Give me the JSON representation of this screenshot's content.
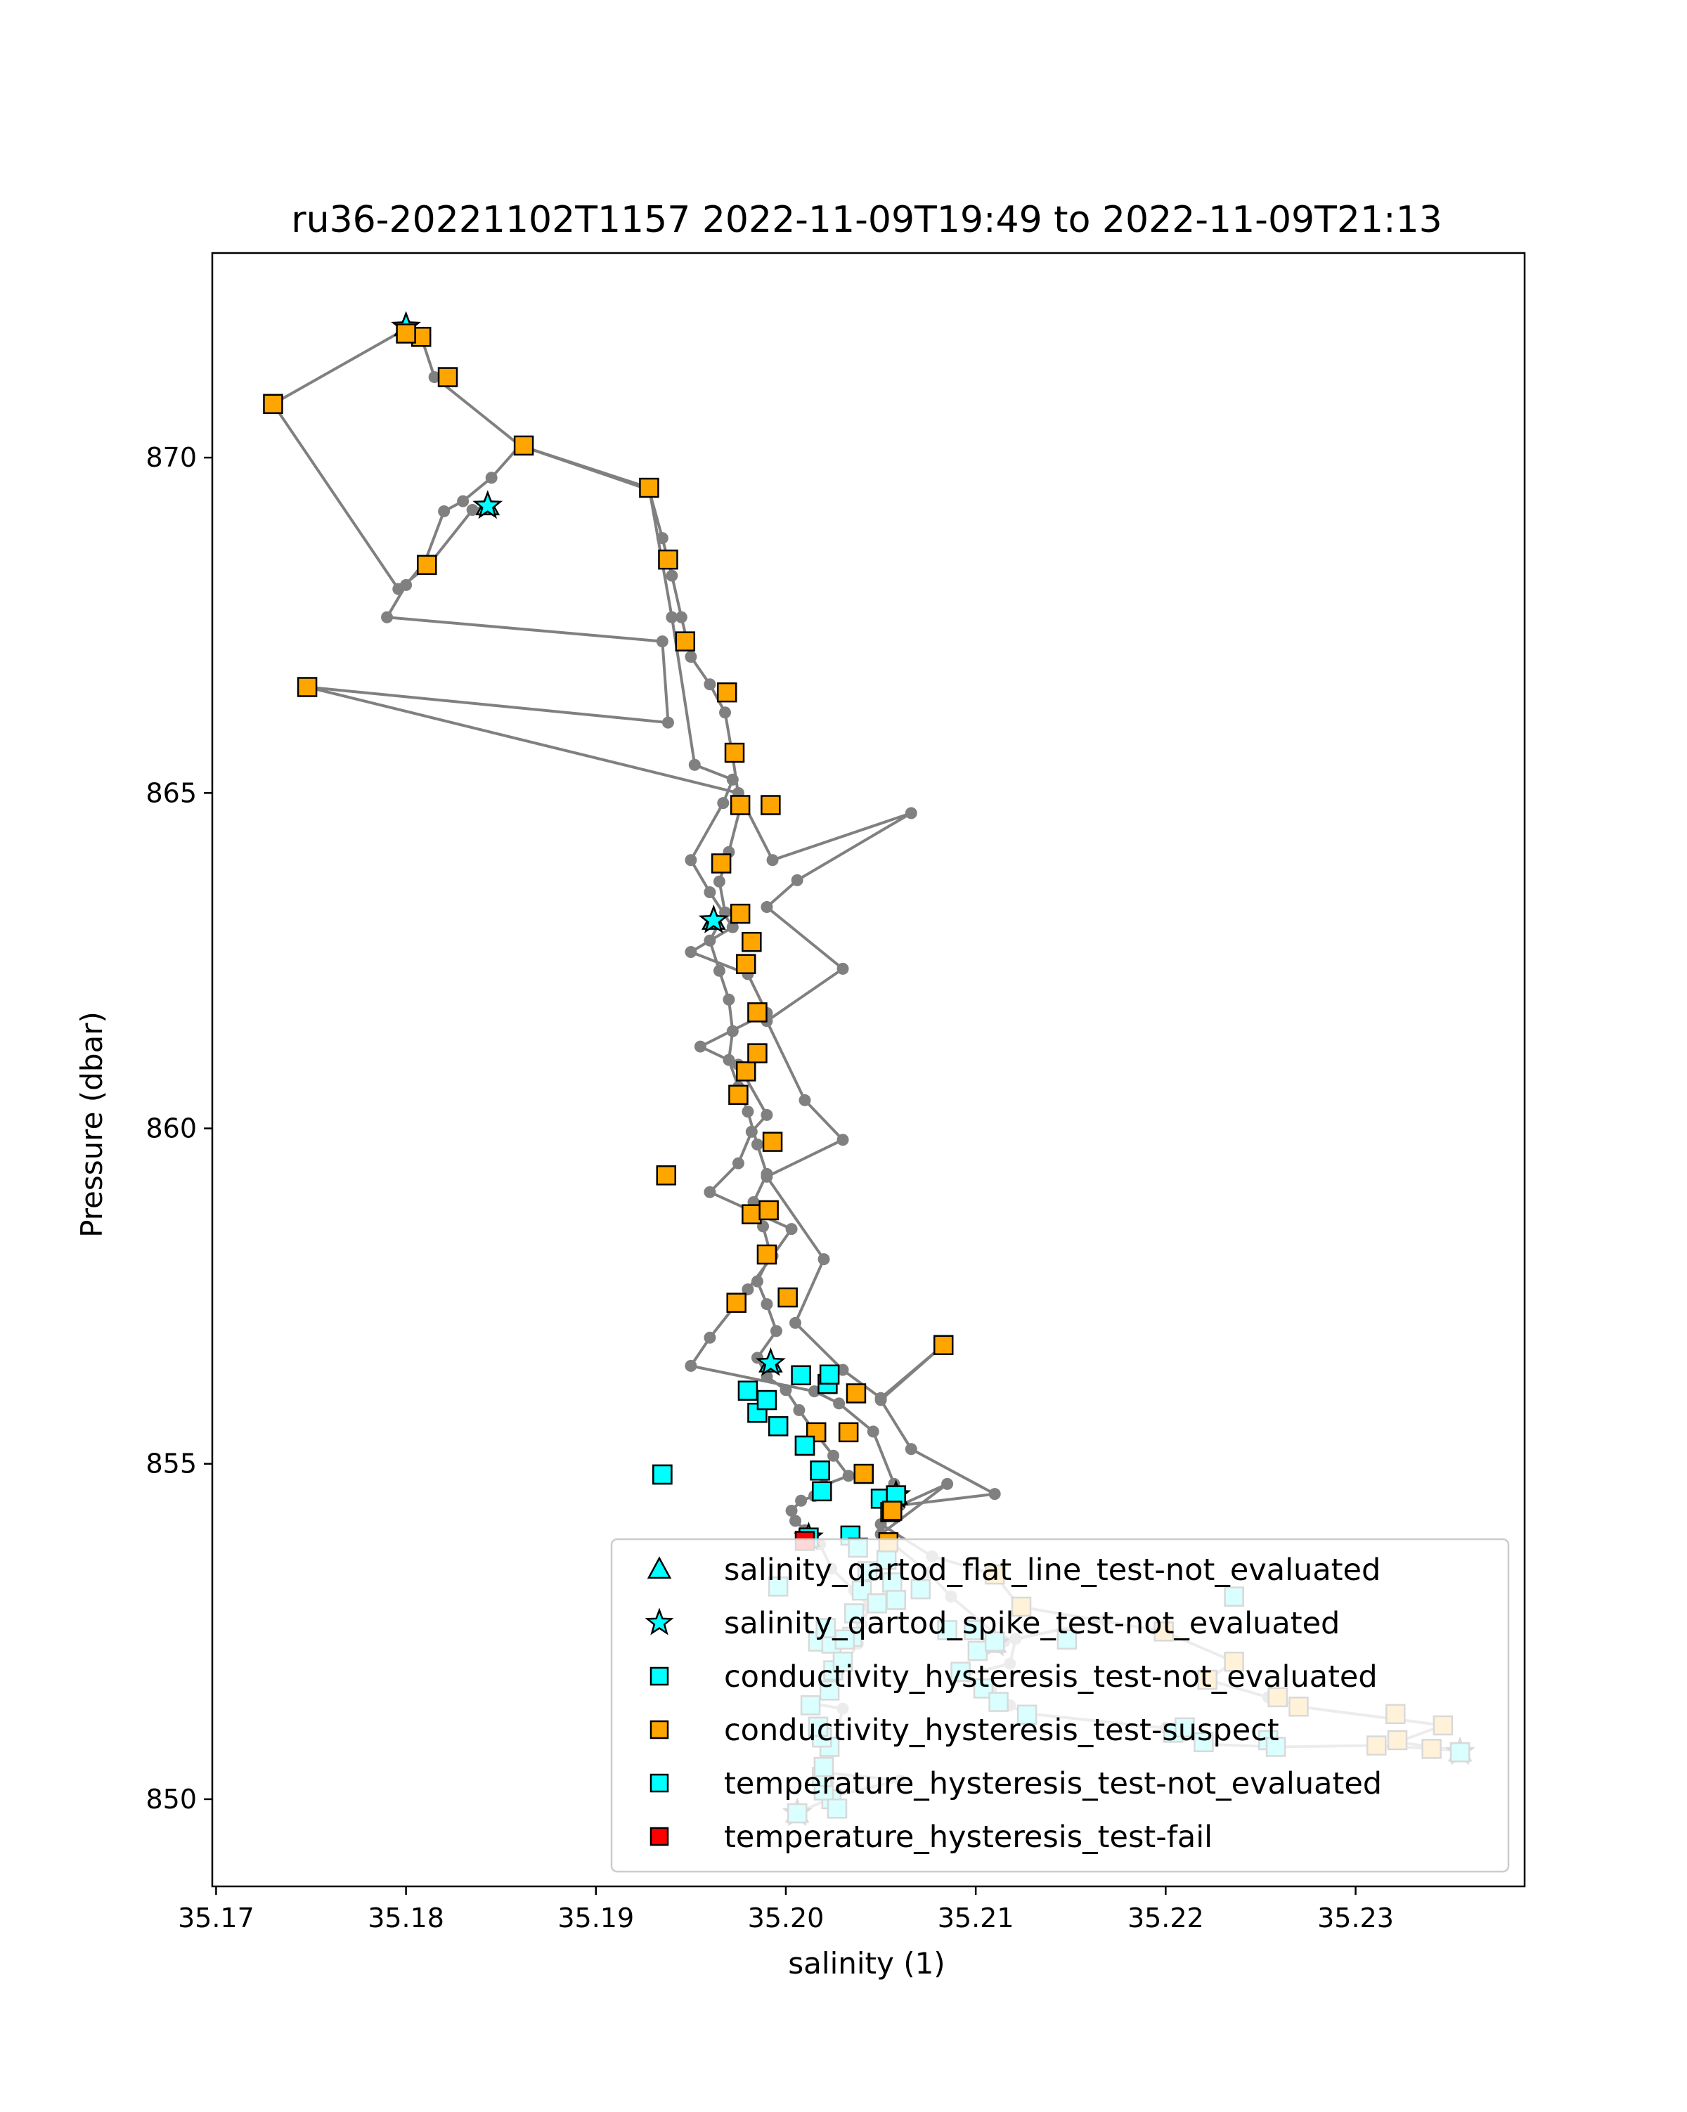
{
  "chart_data": {
    "type": "scatter",
    "title": "ru36-20221102T1157 2022-11-09T19:49 to 2022-11-09T21:13",
    "xlabel": "salinity (1)",
    "ylabel": "Pressure (dbar)",
    "xlim": [
      35.1698,
      35.2389
    ],
    "ylim": [
      873.05,
      848.7
    ],
    "y_inverted": true,
    "grid": false,
    "legend_position": "bottom-right",
    "x_ticks": [
      "35.17",
      "35.18",
      "35.19",
      "35.20",
      "35.21",
      "35.22",
      "35.23"
    ],
    "x_tick_values": [
      35.17,
      35.18,
      35.19,
      35.2,
      35.21,
      35.22,
      35.23
    ],
    "y_ticks": [
      "850",
      "855",
      "860",
      "865",
      "870"
    ],
    "y_tick_values": [
      850,
      855,
      860,
      865,
      870
    ],
    "colors": {
      "line": "#808080",
      "not_evaluated": "#00ffff",
      "suspect": "#ffa500",
      "fail": "#ff0000",
      "edge": "#000000"
    },
    "profile": [
      [
        35.2006,
        849.79
      ],
      [
        35.2026,
        850.05
      ],
      [
        35.206,
        850.28
      ],
      [
        35.2022,
        850.39
      ],
      [
        35.2025,
        850.78
      ],
      [
        35.203,
        851.35
      ],
      [
        35.2015,
        851.42
      ],
      [
        35.2024,
        851.68
      ],
      [
        35.2032,
        852.05
      ],
      [
        35.2038,
        852.32
      ],
      [
        35.204,
        852.6
      ],
      [
        35.2044,
        852.87
      ],
      [
        35.2036,
        853.11
      ],
      [
        35.2024,
        853.44
      ],
      [
        35.2018,
        853.8
      ],
      [
        35.201,
        854.01
      ],
      [
        35.2005,
        854.15
      ],
      [
        35.2003,
        854.3
      ],
      [
        35.2008,
        854.45
      ],
      [
        35.2015,
        854.52
      ],
      [
        35.202,
        854.68
      ],
      [
        35.2033,
        854.82
      ],
      [
        35.2025,
        855.12
      ],
      [
        35.2015,
        855.48
      ],
      [
        35.2007,
        855.8
      ],
      [
        35.2,
        856.1
      ],
      [
        35.199,
        856.3
      ],
      [
        35.1985,
        856.58
      ],
      [
        35.1995,
        856.98
      ],
      [
        35.199,
        857.38
      ],
      [
        35.1985,
        857.72
      ],
      [
        35.1992,
        858.12
      ],
      [
        35.1988,
        858.54
      ],
      [
        35.1983,
        858.9
      ],
      [
        35.199,
        859.32
      ],
      [
        35.1985,
        859.76
      ],
      [
        35.198,
        860.25
      ],
      [
        35.1975,
        860.62
      ],
      [
        35.197,
        861.02
      ],
      [
        35.1972,
        861.45
      ],
      [
        35.197,
        861.92
      ],
      [
        35.1965,
        862.35
      ],
      [
        35.196,
        862.8
      ],
      [
        35.1968,
        863.22
      ],
      [
        35.1965,
        863.68
      ],
      [
        35.197,
        864.12
      ],
      [
        35.1976,
        864.78
      ],
      [
        35.1972,
        865.55
      ],
      [
        35.1968,
        866.2
      ],
      [
        35.196,
        866.62
      ],
      [
        35.195,
        867.03
      ],
      [
        35.1945,
        867.62
      ],
      [
        35.194,
        868.24
      ],
      [
        35.1935,
        868.8
      ],
      [
        35.1928,
        869.52
      ],
      [
        35.186,
        870.18
      ],
      [
        35.1845,
        869.7
      ],
      [
        35.183,
        869.35
      ],
      [
        35.182,
        869.2
      ],
      [
        35.181,
        868.45
      ],
      [
        35.18,
        868.1
      ],
      [
        35.179,
        867.62
      ],
      [
        35.1935,
        867.26
      ],
      [
        35.1938,
        866.05
      ],
      [
        35.1748,
        866.58
      ],
      [
        35.1975,
        865.0
      ],
      [
        35.1993,
        864.0
      ],
      [
        35.2066,
        864.7
      ],
      [
        35.2006,
        863.7
      ],
      [
        35.199,
        863.3
      ],
      [
        35.203,
        862.38
      ],
      [
        35.199,
        861.6
      ],
      [
        35.201,
        860.42
      ],
      [
        35.203,
        859.83
      ],
      [
        35.199,
        859.28
      ],
      [
        35.202,
        858.05
      ],
      [
        35.2005,
        857.1
      ],
      [
        35.203,
        856.4
      ],
      [
        35.205,
        855.98
      ],
      [
        35.2083,
        856.77
      ],
      [
        35.205,
        855.95
      ],
      [
        35.2066,
        855.22
      ],
      [
        35.211,
        854.55
      ],
      [
        35.206,
        854.38
      ],
      [
        35.2085,
        854.7
      ],
      [
        35.205,
        853.95
      ],
      [
        35.2075,
        853.38
      ],
      [
        35.2087,
        853.02
      ],
      [
        35.2115,
        852.35
      ],
      [
        35.2168,
        852.67
      ],
      [
        35.2121,
        852.39
      ],
      [
        35.2118,
        852.02
      ],
      [
        35.209,
        851.82
      ],
      [
        35.2108,
        851.64
      ],
      [
        35.2118,
        851.4
      ],
      [
        35.2126,
        851.28
      ],
      [
        35.22,
        851.06
      ],
      [
        35.222,
        850.82
      ],
      [
        35.2258,
        850.78
      ],
      [
        35.2311,
        850.8
      ],
      [
        35.2354,
        850.73
      ],
      [
        35.2322,
        850.85
      ],
      [
        35.2346,
        851.1
      ],
      [
        35.227,
        851.38
      ],
      [
        35.2254,
        851.52
      ],
      [
        35.2222,
        851.78
      ],
      [
        35.2236,
        852.05
      ],
      [
        35.2199,
        852.5
      ],
      [
        35.2123,
        852.87
      ],
      [
        35.211,
        853.35
      ],
      [
        35.2077,
        853.62
      ],
      [
        35.205,
        854.1
      ],
      [
        35.2057,
        854.7
      ],
      [
        35.2046,
        855.48
      ],
      [
        35.2028,
        855.9
      ],
      [
        35.2015,
        856.08
      ],
      [
        35.195,
        856.46
      ],
      [
        35.196,
        856.88
      ],
      [
        35.198,
        857.6
      ],
      [
        35.1993,
        858.1
      ],
      [
        35.2003,
        858.5
      ],
      [
        35.196,
        859.05
      ],
      [
        35.1975,
        859.48
      ],
      [
        35.1982,
        859.95
      ],
      [
        35.199,
        860.2
      ],
      [
        35.1975,
        860.95
      ],
      [
        35.1955,
        861.22
      ],
      [
        35.199,
        861.72
      ],
      [
        35.198,
        862.3
      ],
      [
        35.195,
        862.63
      ],
      [
        35.1972,
        863.0
      ],
      [
        35.196,
        863.52
      ],
      [
        35.195,
        864.0
      ],
      [
        35.1967,
        864.85
      ],
      [
        35.1972,
        865.2
      ],
      [
        35.1952,
        865.42
      ],
      [
        35.194,
        867.62
      ],
      [
        35.1928,
        869.55
      ],
      [
        35.186,
        870.18
      ],
      [
        35.1815,
        871.2
      ],
      [
        35.1808,
        871.8
      ],
      [
        35.18,
        871.95
      ],
      [
        35.18,
        871.92
      ],
      [
        35.173,
        870.8
      ],
      [
        35.1796,
        868.04
      ],
      [
        35.1812,
        868.4
      ],
      [
        35.1835,
        869.22
      ],
      [
        35.1843,
        869.28
      ]
    ],
    "markers": {
      "salinity_qartod_flat_line_test-not_evaluated": [
        [
          35.2006,
          849.79
        ],
        [
          35.2355,
          850.7
        ],
        [
          35.211,
          852.32
        ],
        [
          35.1992,
          856.5
        ],
        [
          35.2058,
          854.53
        ],
        [
          35.2012,
          853.9
        ],
        [
          35.1962,
          863.1
        ],
        [
          35.1843,
          869.28
        ],
        [
          35.18,
          871.95
        ]
      ],
      "salinity_qartod_spike_test-not_evaluated": [
        [
          35.2006,
          849.79
        ],
        [
          35.2355,
          850.7
        ],
        [
          35.211,
          852.32
        ],
        [
          35.1992,
          856.5
        ],
        [
          35.2058,
          854.53
        ],
        [
          35.2012,
          853.9
        ],
        [
          35.1962,
          863.1
        ],
        [
          35.1843,
          869.28
        ],
        [
          35.18,
          871.95
        ]
      ],
      "conductivity_hysteresis_test-not_evaluated": [
        [
          35.2006,
          849.79
        ],
        [
          35.2027,
          849.86
        ],
        [
          35.2024,
          850.0
        ],
        [
          35.202,
          850.13
        ],
        [
          35.2019,
          850.33
        ],
        [
          35.202,
          850.48
        ],
        [
          35.2023,
          850.78
        ],
        [
          35.2019,
          850.92
        ],
        [
          35.2017,
          851.08
        ],
        [
          35.2013,
          851.4
        ],
        [
          35.2023,
          851.62
        ],
        [
          35.2025,
          851.92
        ],
        [
          35.203,
          852.05
        ],
        [
          35.2017,
          852.35
        ],
        [
          35.2024,
          852.32
        ],
        [
          35.2035,
          852.42
        ],
        [
          35.2021,
          852.55
        ],
        [
          35.2031,
          852.38
        ],
        [
          35.2036,
          852.77
        ],
        [
          35.204,
          853.11
        ],
        [
          35.2043,
          853.4
        ],
        [
          35.2048,
          852.92
        ],
        [
          35.2056,
          853.23
        ],
        [
          35.2058,
          852.97
        ],
        [
          35.2071,
          853.13
        ],
        [
          35.2053,
          853.57
        ],
        [
          35.2034,
          853.93
        ],
        [
          35.2038,
          853.75
        ],
        [
          35.1996,
          853.17
        ],
        [
          35.2019,
          854.59
        ],
        [
          35.2018,
          854.9
        ],
        [
          35.205,
          854.48
        ],
        [
          35.2055,
          854.28
        ],
        [
          35.1935,
          854.84
        ],
        [
          35.201,
          855.27
        ],
        [
          35.1996,
          855.56
        ],
        [
          35.1985,
          855.76
        ],
        [
          35.199,
          855.95
        ],
        [
          35.198,
          856.09
        ],
        [
          35.2022,
          856.19
        ],
        [
          35.2008,
          856.32
        ],
        [
          35.2023,
          856.33
        ],
        [
          35.2092,
          851.9
        ],
        [
          35.2085,
          852.52
        ],
        [
          35.2104,
          851.65
        ],
        [
          35.2101,
          852.21
        ],
        [
          35.2099,
          852.52
        ],
        [
          35.2112,
          851.45
        ],
        [
          35.2127,
          851.26
        ],
        [
          35.211,
          852.35
        ],
        [
          35.2148,
          852.38
        ],
        [
          35.2236,
          853.02
        ],
        [
          35.2204,
          850.99
        ],
        [
          35.221,
          851.07
        ],
        [
          35.222,
          850.85
        ],
        [
          35.2254,
          850.88
        ],
        [
          35.2258,
          850.78
        ],
        [
          35.2355,
          850.7
        ],
        [
          35.2058,
          854.53
        ],
        [
          35.2012,
          853.9
        ]
      ],
      "conductivity_hysteresis_test-suspect": [
        [
          35.2311,
          850.8
        ],
        [
          35.2322,
          850.88
        ],
        [
          35.234,
          850.75
        ],
        [
          35.2321,
          851.27
        ],
        [
          35.2346,
          851.1
        ],
        [
          35.227,
          851.38
        ],
        [
          35.2259,
          851.52
        ],
        [
          35.2222,
          851.78
        ],
        [
          35.2236,
          852.05
        ],
        [
          35.2199,
          852.5
        ],
        [
          35.2124,
          852.87
        ],
        [
          35.211,
          853.35
        ],
        [
          35.2054,
          853.83
        ],
        [
          35.2056,
          854.3
        ],
        [
          35.2041,
          854.85
        ],
        [
          35.2016,
          855.47
        ],
        [
          35.2033,
          855.47
        ],
        [
          35.2037,
          856.05
        ],
        [
          35.2083,
          856.77
        ],
        [
          35.2001,
          857.48
        ],
        [
          35.1974,
          857.4
        ],
        [
          35.199,
          858.12
        ],
        [
          35.1982,
          858.72
        ],
        [
          35.1991,
          858.78
        ],
        [
          35.1937,
          859.3
        ],
        [
          35.1993,
          859.8
        ],
        [
          35.1975,
          860.5
        ],
        [
          35.1979,
          860.85
        ],
        [
          35.1985,
          861.12
        ],
        [
          35.1985,
          861.73
        ],
        [
          35.1979,
          862.45
        ],
        [
          35.1982,
          862.78
        ],
        [
          35.1976,
          863.2
        ],
        [
          35.1966,
          863.95
        ],
        [
          35.1976,
          864.82
        ],
        [
          35.1992,
          864.82
        ],
        [
          35.1973,
          865.6
        ],
        [
          35.1969,
          866.5
        ],
        [
          35.1748,
          866.58
        ],
        [
          35.1947,
          867.26
        ],
        [
          35.1938,
          868.48
        ],
        [
          35.1928,
          869.55
        ],
        [
          35.1862,
          870.18
        ],
        [
          35.173,
          870.8
        ],
        [
          35.1811,
          868.4
        ],
        [
          35.1822,
          871.2
        ],
        [
          35.1808,
          871.8
        ],
        [
          35.18,
          871.85
        ]
      ],
      "temperature_hysteresis_test-not_evaluated": [
        [
          35.2006,
          849.79
        ],
        [
          35.2027,
          849.86
        ],
        [
          35.202,
          850.48
        ],
        [
          35.2017,
          851.08
        ],
        [
          35.203,
          852.05
        ],
        [
          35.2058,
          852.97
        ],
        [
          35.201,
          855.27
        ],
        [
          35.1935,
          854.84
        ],
        [
          35.2236,
          853.02
        ],
        [
          35.2355,
          850.7
        ]
      ],
      "temperature_hysteresis_test-fail": [
        [
          35.201,
          853.85
        ]
      ]
    },
    "legend": [
      {
        "label": "salinity_qartod_flat_line_test-not_evaluated",
        "marker": "triangle",
        "color": "#00ffff"
      },
      {
        "label": "salinity_qartod_spike_test-not_evaluated",
        "marker": "star",
        "color": "#00ffff"
      },
      {
        "label": "conductivity_hysteresis_test-not_evaluated",
        "marker": "square",
        "color": "#00ffff"
      },
      {
        "label": "conductivity_hysteresis_test-suspect",
        "marker": "square",
        "color": "#ffa500"
      },
      {
        "label": "temperature_hysteresis_test-not_evaluated",
        "marker": "square",
        "color": "#00ffff"
      },
      {
        "label": "temperature_hysteresis_test-fail",
        "marker": "square",
        "color": "#ff0000"
      }
    ]
  }
}
